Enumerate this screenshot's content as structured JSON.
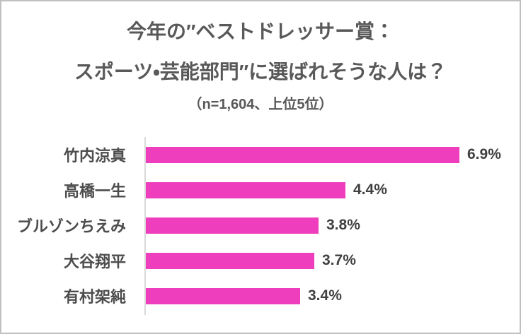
{
  "chart_data": {
    "type": "bar",
    "orientation": "horizontal",
    "title": "今年の″ベストドレッサー賞：スポーツ・芸能部門″に選ばれそうな人は？",
    "title_lines": [
      "今年の″ベストドレッサー賞：",
      "スポーツ・芸能部門″に選ばれそうな人は？"
    ],
    "subtitle": "（n=1,604、上位5位）",
    "sample_size": "1,604",
    "categories": [
      "竹内涼真",
      "高橋一生",
      "ブルゾンちえみ",
      "大谷翔平",
      "有村架純"
    ],
    "values": [
      6.9,
      4.4,
      3.8,
      3.7,
      3.4
    ],
    "value_labels": [
      "6.9%",
      "4.4%",
      "3.8%",
      "3.7%",
      "3.4%"
    ],
    "unit": "%",
    "xlim": [
      0,
      7.5
    ],
    "grid": false,
    "legend": false,
    "value_labels_position": "end-of-bar"
  },
  "colors": {
    "bar": "#EE3EBE",
    "title_text": "#595959",
    "label_text": "#4d4d4d",
    "value_text": "#404040",
    "axis_line": "#D9D9D9",
    "frame_border": "#C0C0C0",
    "background": "#FFFFFF"
  }
}
